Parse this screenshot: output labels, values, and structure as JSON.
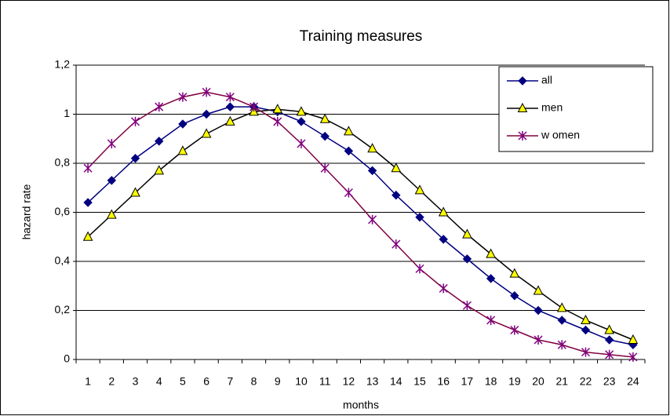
{
  "chart_data": {
    "type": "line",
    "title": "Training measures",
    "x_label": "months",
    "y_label": "hazard rate",
    "categories": [
      1,
      2,
      3,
      4,
      5,
      6,
      7,
      8,
      9,
      10,
      11,
      12,
      13,
      14,
      15,
      16,
      17,
      18,
      19,
      20,
      21,
      22,
      23,
      24
    ],
    "series": [
      {
        "name": "all",
        "color": "#000080",
        "marker": "diamond",
        "marker_fill": "#000080",
        "values": [
          0.64,
          0.73,
          0.82,
          0.89,
          0.96,
          1.0,
          1.03,
          1.03,
          1.01,
          0.97,
          0.91,
          0.85,
          0.77,
          0.67,
          0.58,
          0.49,
          0.41,
          0.33,
          0.26,
          0.2,
          0.16,
          0.12,
          0.08,
          0.06
        ]
      },
      {
        "name": "men",
        "color": "#000000",
        "marker": "triangle",
        "marker_fill": "#ffff00",
        "values": [
          0.5,
          0.59,
          0.68,
          0.77,
          0.85,
          0.92,
          0.97,
          1.01,
          1.02,
          1.01,
          0.98,
          0.93,
          0.86,
          0.78,
          0.69,
          0.6,
          0.51,
          0.43,
          0.35,
          0.28,
          0.21,
          0.16,
          0.12,
          0.08
        ]
      },
      {
        "name": "w omen",
        "color": "#800040",
        "marker": "star",
        "marker_fill": "#800080",
        "values": [
          0.78,
          0.88,
          0.97,
          1.03,
          1.07,
          1.09,
          1.07,
          1.03,
          0.97,
          0.88,
          0.78,
          0.68,
          0.57,
          0.47,
          0.37,
          0.29,
          0.22,
          0.16,
          0.12,
          0.08,
          0.06,
          0.03,
          0.02,
          0.01
        ]
      }
    ],
    "ylim": [
      0,
      1.2
    ],
    "yticks": [
      0,
      {
        "value": 0.2,
        "label": "0,2"
      },
      {
        "value": 0.4,
        "label": "0,4"
      },
      {
        "value": 0.6,
        "label": "0,6"
      },
      {
        "value": 0.8,
        "label": "0,8"
      },
      1,
      {
        "value": 1.2,
        "label": "1,2"
      }
    ],
    "grid": true,
    "legend": "upper right"
  }
}
